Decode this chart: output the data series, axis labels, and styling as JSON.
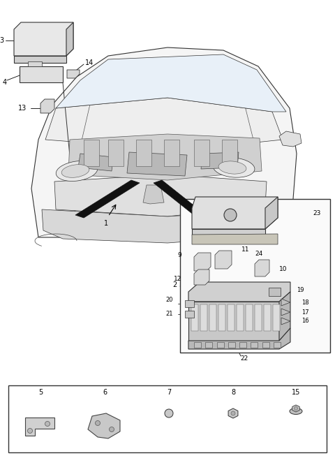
{
  "bg_color": "#ffffff",
  "line_color": "#000000",
  "fig_width": 4.8,
  "fig_height": 6.56,
  "dpi": 100
}
